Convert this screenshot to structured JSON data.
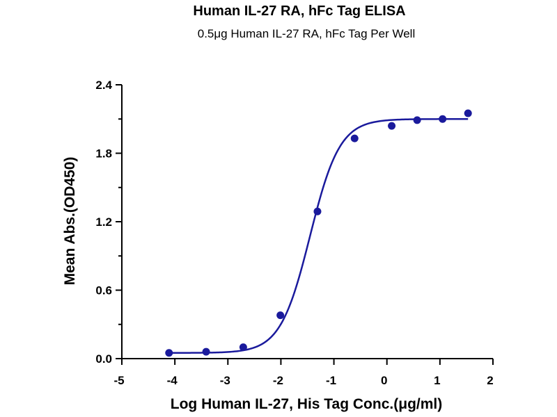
{
  "chart_data": {
    "type": "scatter",
    "title": "Human IL-27 RA, hFc Tag ELISA",
    "subtitle": "0.5μg Human IL-27 RA, hFc Tag Per Well",
    "xlabel": "Log Human IL-27, His Tag Conc.(μg/ml)",
    "ylabel": "Mean Abs.(OD450)",
    "xlim": [
      -5,
      2
    ],
    "ylim": [
      0,
      2.4
    ],
    "xticks": [
      "-5",
      "-4",
      "-3",
      "-2",
      "-1",
      "0",
      "1",
      "2"
    ],
    "yticks": [
      "0.0",
      "0.6",
      "1.2",
      "1.8",
      "2.4"
    ],
    "grid": false,
    "legend": "none",
    "colors": {
      "series": "#1a1a9c"
    },
    "series": [
      {
        "x": [
          -4.11,
          -3.41,
          -2.71,
          -2.01,
          -1.31,
          -0.61,
          0.09,
          0.57,
          1.05,
          1.53
        ],
        "y": [
          0.05,
          0.06,
          0.1,
          0.38,
          1.29,
          1.93,
          2.04,
          2.09,
          2.1,
          2.15
        ],
        "fit": {
          "model": "4PL",
          "bottom": 0.05,
          "top": 2.1,
          "logEC50": -1.45,
          "hill": 1.55
        }
      }
    ]
  }
}
